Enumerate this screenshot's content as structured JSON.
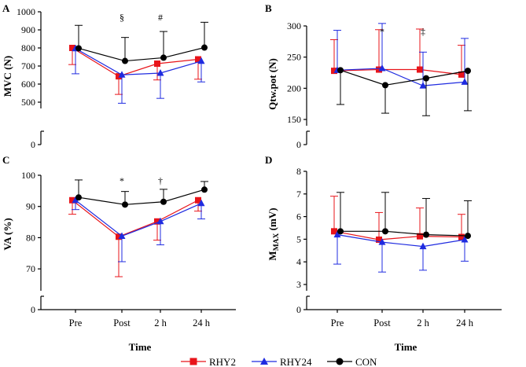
{
  "colors": {
    "RHY2": "#e8141a",
    "RHY24": "#1f2be0",
    "CON": "#000000"
  },
  "chart_data": [
    {
      "type": "line",
      "panel": "A",
      "ylabel": "MVC (N)",
      "xlabel": "",
      "ylim": [
        500,
        1000
      ],
      "yticks": [
        500,
        600,
        700,
        800,
        900,
        1000
      ],
      "baseline": 0,
      "categories": [
        "Pre",
        "Post",
        "2 h",
        "24 h"
      ],
      "annotations": [
        {
          "category": "Post",
          "text": "§"
        },
        {
          "category": "2 h",
          "text": "#"
        }
      ],
      "series": [
        {
          "name": "RHY2",
          "values": [
            800,
            643,
            713,
            737
          ],
          "error_minus": [
            92,
            100,
            90,
            110
          ],
          "error_plus": [
            0,
            0,
            0,
            0
          ]
        },
        {
          "name": "RHY24",
          "values": [
            797,
            651,
            661,
            727
          ],
          "error_minus": [
            140,
            157,
            140,
            115
          ],
          "error_plus": [
            0,
            0,
            0,
            0
          ]
        },
        {
          "name": "CON",
          "values": [
            798,
            728,
            746,
            802
          ],
          "error_minus": [
            0,
            0,
            0,
            0
          ],
          "error_plus": [
            127,
            130,
            145,
            140
          ]
        }
      ]
    },
    {
      "type": "line",
      "panel": "B",
      "ylabel": "Qtw.pot (N)",
      "xlabel": "",
      "ylim": [
        150,
        300
      ],
      "yticks": [
        150,
        200,
        250,
        300
      ],
      "baseline": 0,
      "categories": [
        "Pre",
        "Post",
        "2 h",
        "24 h"
      ],
      "annotations": [
        {
          "category": "Post",
          "text": "*"
        },
        {
          "category": "2 h",
          "text": "‡"
        }
      ],
      "series": [
        {
          "name": "RHY2",
          "values": [
            228,
            230,
            230,
            222
          ],
          "error_minus": [
            0,
            0,
            0,
            0
          ],
          "error_plus": [
            50,
            64,
            65,
            47
          ]
        },
        {
          "name": "RHY24",
          "values": [
            229,
            232,
            204,
            210
          ],
          "error_minus": [
            0,
            0,
            0,
            0
          ],
          "error_plus": [
            64,
            72,
            54,
            70
          ]
        },
        {
          "name": "CON",
          "values": [
            229,
            205,
            216,
            228
          ],
          "error_minus": [
            55,
            45,
            60,
            64
          ],
          "error_plus": [
            0,
            0,
            0,
            0
          ]
        }
      ]
    },
    {
      "type": "line",
      "panel": "C",
      "ylabel": "VA (%)",
      "xlabel": "Time",
      "ylim": [
        65,
        100
      ],
      "yticks": [
        70,
        80,
        90,
        100
      ],
      "baseline": 0,
      "categories": [
        "Pre",
        "Post",
        "2 h",
        "24 h"
      ],
      "annotations": [
        {
          "category": "Post",
          "text": "*"
        },
        {
          "category": "2 h",
          "text": "†"
        }
      ],
      "series": [
        {
          "name": "RHY2",
          "values": [
            92,
            80.3,
            85.2,
            92
          ],
          "error_minus": [
            4.5,
            12.8,
            6,
            3.5
          ],
          "error_plus": [
            0,
            0,
            0,
            0
          ]
        },
        {
          "name": "RHY24",
          "values": [
            92,
            80.5,
            85.2,
            91
          ],
          "error_minus": [
            3,
            8.2,
            7.5,
            5
          ],
          "error_plus": [
            0,
            0,
            0,
            0
          ]
        },
        {
          "name": "CON",
          "values": [
            92.9,
            90.6,
            91.5,
            95.4
          ],
          "error_minus": [
            0,
            0,
            0,
            0
          ],
          "error_plus": [
            5.6,
            4.2,
            4,
            2.6
          ]
        }
      ]
    },
    {
      "type": "line",
      "panel": "D",
      "ylabel": "MMAX (mV)",
      "ylabel_main": "M",
      "ylabel_sub": "MAX",
      "ylabel_unit": " (mV)",
      "xlabel": "Time",
      "ylim": [
        3,
        8
      ],
      "yticks": [
        3,
        4,
        5,
        6,
        7,
        8
      ],
      "baseline": 0,
      "categories": [
        "Pre",
        "Post",
        "2 h",
        "24 h"
      ],
      "annotations": [],
      "series": [
        {
          "name": "RHY2",
          "values": [
            5.35,
            4.98,
            5.13,
            5.1
          ],
          "error_minus": [
            0,
            0,
            0,
            0
          ],
          "error_plus": [
            1.55,
            1.2,
            1.25,
            1.0
          ]
        },
        {
          "name": "RHY24",
          "values": [
            5.2,
            4.87,
            4.68,
            4.98
          ],
          "error_minus": [
            1.3,
            1.32,
            1.05,
            0.95
          ],
          "error_plus": [
            0,
            0,
            0,
            0
          ]
        },
        {
          "name": "CON",
          "values": [
            5.35,
            5.35,
            5.2,
            5.15
          ],
          "error_minus": [
            0,
            0,
            0,
            0
          ],
          "error_plus": [
            1.72,
            1.72,
            1.6,
            1.55
          ]
        }
      ]
    }
  ],
  "legend": {
    "items": [
      "RHY2",
      "RHY24",
      "CON"
    ]
  }
}
